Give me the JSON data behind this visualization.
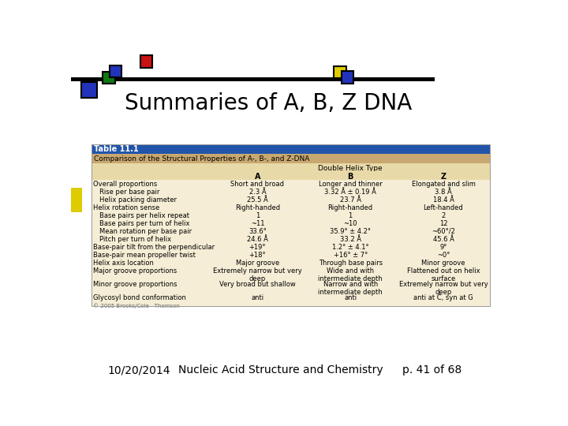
{
  "title": "Summaries of A, B, Z DNA",
  "footer_left": "10/20/2014",
  "footer_mid": "Nucleic Acid Structure and Chemistry",
  "footer_right": "p. 41 of 68",
  "table_title": "Table 11.1",
  "table_subtitle": "Comparison of the Structural Properties of A-, B-, and Z-DNA",
  "col_header_group": "Double Helix Type",
  "col_headers": [
    "A",
    "B",
    "Z"
  ],
  "rows": [
    [
      "Overall proportions",
      "Short and broad",
      "Longer and thinner",
      "Elongated and slim"
    ],
    [
      "   Rise per base pair",
      "2.3 Å",
      "3.32 Å ± 0.19 Å",
      "3.8 Å"
    ],
    [
      "   Helix packing diameter",
      "25.5 Å",
      "23.7 Å",
      "18.4 Å"
    ],
    [
      "Helix rotation sense",
      "Right-handed",
      "Right-handed",
      "Left-handed"
    ],
    [
      "   Base pairs per helix repeat",
      "1",
      "1",
      "2"
    ],
    [
      "   Base pairs per turn of helix",
      "~11",
      "~10",
      "12"
    ],
    [
      "   Mean rotation per base pair",
      "33.6°",
      "35.9° ± 4.2°",
      "~60°/2"
    ],
    [
      "   Pitch per turn of helix",
      "24.6 Å",
      "33.2 Å",
      "45.6 Å"
    ],
    [
      "Base-pair tilt from the perpendicular",
      "+19°",
      "1.2° ± 4.1°",
      "9°"
    ],
    [
      "Base-pair mean propeller twist",
      "+18°",
      "+16° ± 7°",
      "~0°"
    ],
    [
      "Helix axis location",
      "Major groove",
      "Through base pairs",
      "Minor groove"
    ],
    [
      "Major groove proportions",
      "Extremely narrow but very\ndeep",
      "Wide and with\nintermediate depth",
      "Flattened out on helix\nsurface"
    ],
    [
      "Minor groove proportions",
      "Very broad but shallow",
      "Narrow and with\nintermediate depth",
      "Extremely narrow but very\ndeep"
    ],
    [
      "Glycosyl bond conformation",
      "anti",
      "anti",
      "anti at C, syn at G"
    ]
  ],
  "copyright": "© 2005 Brooks/Cole - Thomson",
  "bg_color": "#ffffff",
  "table_header_bg": "#2255aa",
  "table_subheader_bg": "#c8a870",
  "table_colheader_bg": "#e8d9a8",
  "table_body_bg": "#f5edd5",
  "header_text_color": "#ffffff",
  "body_text_color": "#000000",
  "dec_blue": "#2233bb",
  "dec_green": "#117711",
  "dec_red": "#cc1111",
  "dec_yellow": "#ddcc00",
  "bar_color": "#000000",
  "border_color": "#999999"
}
